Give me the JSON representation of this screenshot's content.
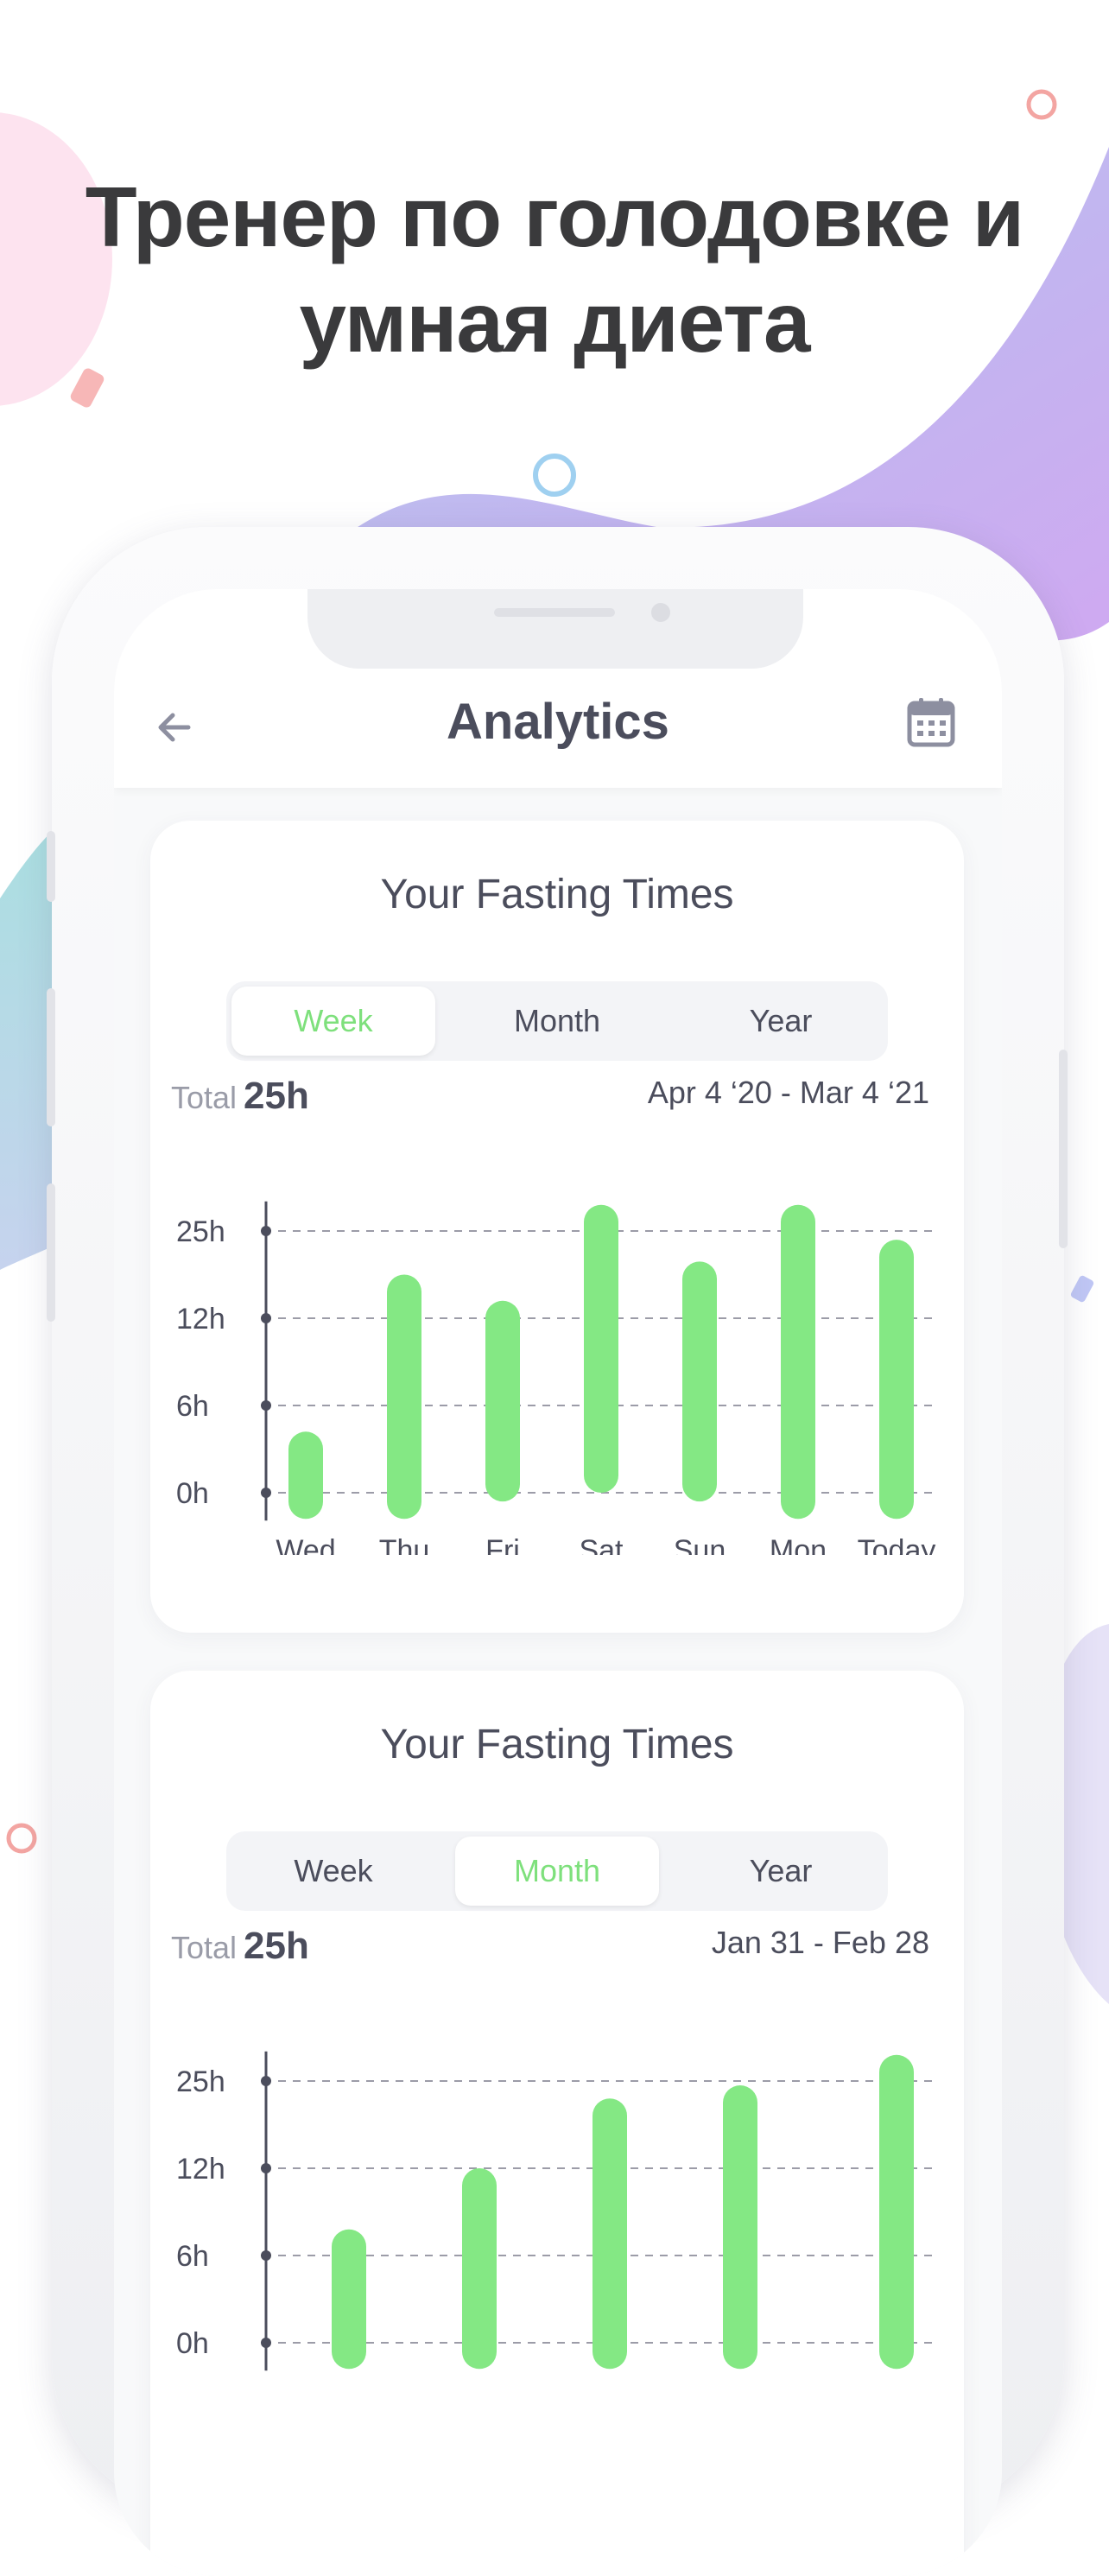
{
  "headline": {
    "line1": "Тренер по голодовке и",
    "line2": "умная диета"
  },
  "colors": {
    "accent_green": "#84e884",
    "text_dark": "#4b4d5c",
    "text_muted": "#9a9ca8",
    "headline": "#3a3a3c"
  },
  "appbar": {
    "title": "Analytics",
    "back_icon": "arrow-left-icon",
    "calendar_icon": "calendar-icon"
  },
  "cards": [
    {
      "title": "Your Fasting Times",
      "tabs": [
        "Week",
        "Month",
        "Year"
      ],
      "active_tab": "Week",
      "total_label": "Total",
      "total_value": "25h",
      "range": "Apr 4 ‘20 - Mar 4 ‘21"
    },
    {
      "title": "Your Fasting Times",
      "tabs": [
        "Week",
        "Month",
        "Year"
      ],
      "active_tab": "Month",
      "total_label": "Total",
      "total_value": "25h",
      "range": "Jan 31 - Feb 28"
    }
  ],
  "chart_data": [
    {
      "type": "bar",
      "y_ticks": [
        "25h",
        "12h",
        "6h",
        "0h"
      ],
      "categories": [
        "Wed",
        "Thu",
        "Fri",
        "Sat",
        "Sun",
        "Mon",
        "Today"
      ],
      "bars": [
        [
          -0.3,
          0.7
        ],
        [
          -0.3,
          2.5
        ],
        [
          -0.1,
          2.2
        ],
        [
          0,
          3.3
        ],
        [
          -0.1,
          2.65
        ],
        [
          -0.3,
          3.3
        ],
        [
          -0.3,
          2.9
        ]
      ],
      "ylim": [
        -0.3,
        3.3
      ],
      "grid": true
    },
    {
      "type": "bar",
      "y_ticks": [
        "25h",
        "12h",
        "6h",
        "0h"
      ],
      "categories": [],
      "bars": [
        [
          -0.3,
          1.3
        ],
        [
          -0.3,
          2.0
        ],
        [
          -0.3,
          2.8
        ],
        [
          -0.3,
          2.95
        ],
        [
          -0.3,
          3.3
        ]
      ],
      "ylim": [
        -0.3,
        3.3
      ],
      "grid": true
    }
  ]
}
